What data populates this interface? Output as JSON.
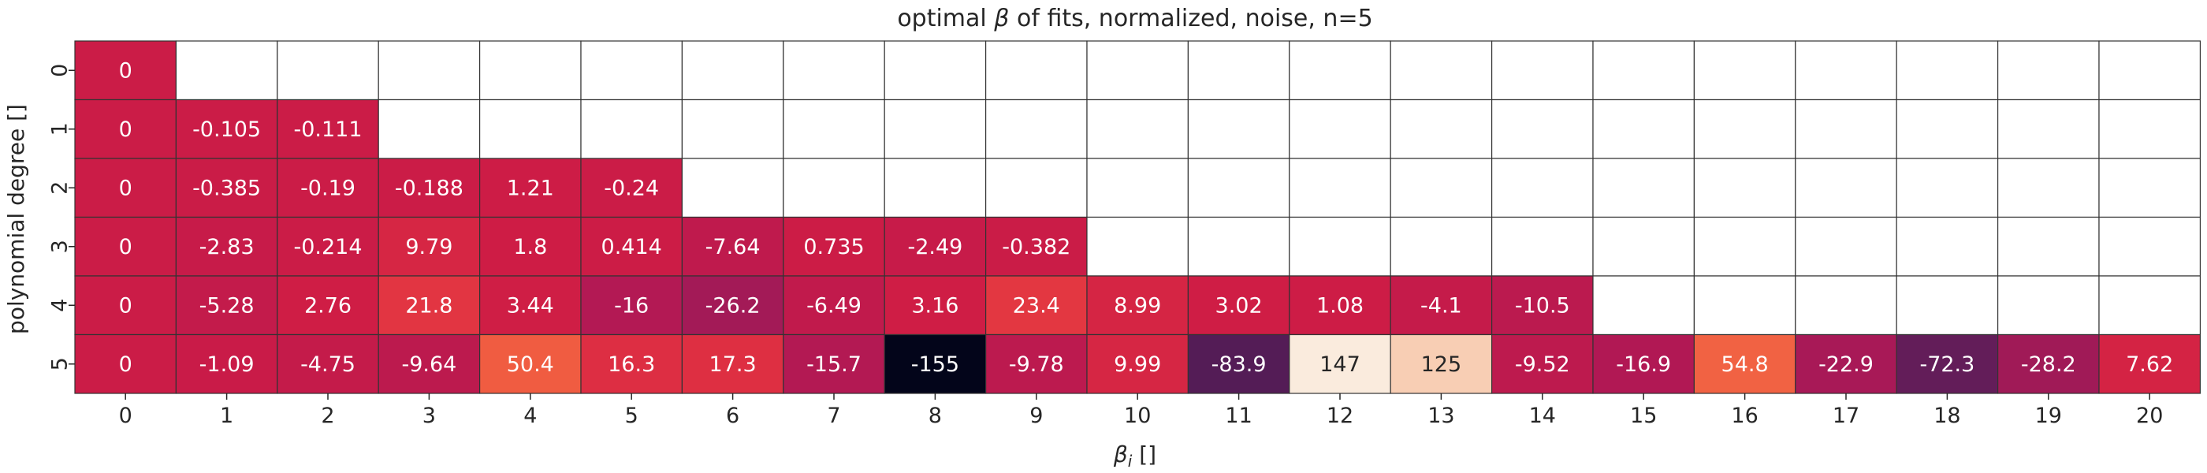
{
  "chart_data": {
    "type": "heatmap",
    "title": "optimal β of fits, normalized, noise, n=5",
    "title_prefix": "optimal ",
    "title_symbol": "β",
    "title_suffix": " of fits, normalized, noise, n=5",
    "xlabel": "βᵢ []",
    "xlabel_symbol": "β",
    "xlabel_subscript": "i",
    "xlabel_unit": " []",
    "ylabel": "polynomial degree []",
    "x_categories": [
      "0",
      "1",
      "2",
      "3",
      "4",
      "5",
      "6",
      "7",
      "8",
      "9",
      "10",
      "11",
      "12",
      "13",
      "14",
      "15",
      "16",
      "17",
      "18",
      "19",
      "20"
    ],
    "y_categories": [
      "0",
      "1",
      "2",
      "3",
      "4",
      "5"
    ],
    "rows": [
      {
        "degree": "0",
        "values": [
          "0"
        ]
      },
      {
        "degree": "1",
        "values": [
          "0",
          "-0.105",
          "-0.111"
        ]
      },
      {
        "degree": "2",
        "values": [
          "0",
          "-0.385",
          "-0.19",
          "-0.188",
          "1.21",
          "-0.24"
        ]
      },
      {
        "degree": "3",
        "values": [
          "0",
          "-2.83",
          "-0.214",
          "9.79",
          "1.8",
          "0.414",
          "-7.64",
          "0.735",
          "-2.49",
          "-0.382"
        ]
      },
      {
        "degree": "4",
        "values": [
          "0",
          "-5.28",
          "2.76",
          "21.8",
          "3.44",
          "-16",
          "-26.2",
          "-6.49",
          "3.16",
          "23.4",
          "8.99",
          "3.02",
          "1.08",
          "-4.1",
          "-10.5"
        ]
      },
      {
        "degree": "5",
        "values": [
          "0",
          "-1.09",
          "-4.75",
          "-9.64",
          "50.4",
          "16.3",
          "17.3",
          "-15.7",
          "-155",
          "-9.78",
          "9.99",
          "-83.9",
          "147",
          "125",
          "-9.52",
          "-16.9",
          "54.8",
          "-22.9",
          "-72.3",
          "-28.2",
          "7.62"
        ]
      }
    ],
    "value_range": [
      -155,
      147
    ],
    "colormap": "rocket",
    "colorbar": false,
    "grid": true,
    "grid_color": "#333333",
    "empty_cell_color": "#ffffff"
  }
}
